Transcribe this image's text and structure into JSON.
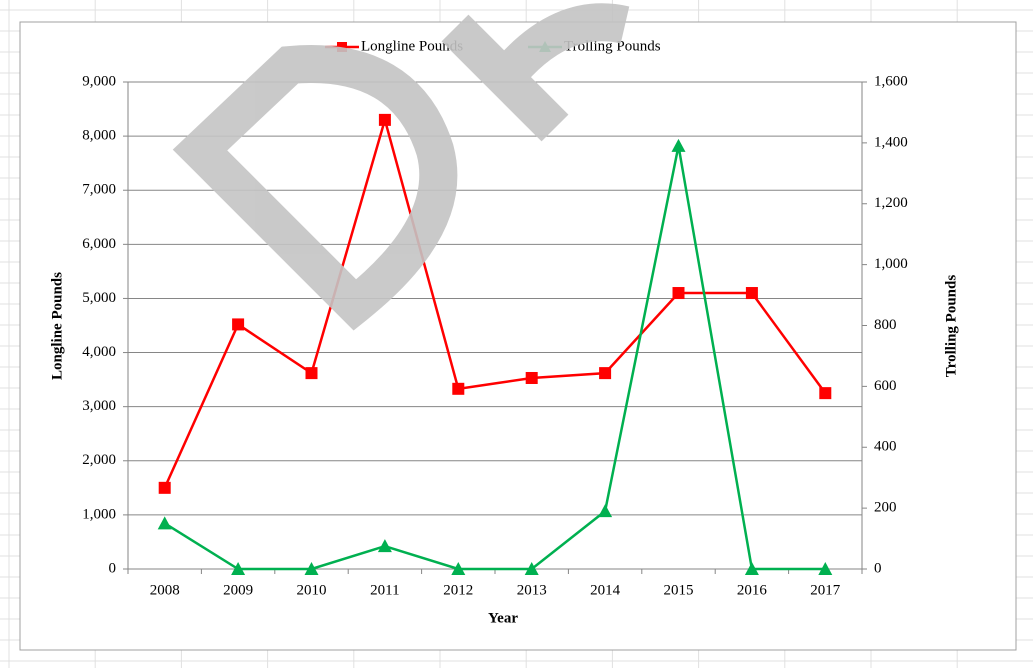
{
  "chart_data": {
    "type": "line",
    "categories": [
      "2008",
      "2009",
      "2010",
      "2011",
      "2012",
      "2013",
      "2014",
      "2015",
      "2016",
      "2017"
    ],
    "series": [
      {
        "name": "Longline Pounds",
        "color": "#ff0000",
        "marker": "square",
        "values": [
          1500,
          4520,
          3620,
          8300,
          3330,
          3530,
          3620,
          5100,
          5100,
          3250
        ]
      },
      {
        "name": "Trolling Pounds",
        "color": "#00b050",
        "marker": "triangle",
        "axis": "y2",
        "values": [
          150,
          0,
          0,
          75,
          0,
          0,
          190,
          1390,
          0,
          0
        ]
      }
    ],
    "xlabel": "Year",
    "ylabel": "Longline Pounds",
    "y2label": "Trolling Pounds",
    "ylim": [
      0,
      9000
    ],
    "yticks": [
      0,
      {
        "value": 1000,
        "label": "1,000"
      },
      {
        "value": 2000,
        "label": "2,000"
      },
      {
        "value": 3000,
        "label": "3,000"
      },
      {
        "value": 4000,
        "label": "4,000"
      },
      {
        "value": 5000,
        "label": "5,000"
      },
      {
        "value": 6000,
        "label": "6,000"
      },
      {
        "value": 7000,
        "label": "7,000"
      },
      {
        "value": 8000,
        "label": "8,000"
      },
      {
        "value": 9000,
        "label": "9,000"
      }
    ],
    "y2lim": [
      0,
      1600
    ],
    "y2ticks": [
      0,
      200,
      400,
      600,
      800,
      {
        "value": 1000,
        "label": "1,000"
      },
      {
        "value": 1200,
        "label": "1,200"
      },
      {
        "value": 1400,
        "label": "1,400"
      },
      {
        "value": 1600,
        "label": "1,600"
      }
    ],
    "grid": true,
    "legend": "top"
  }
}
